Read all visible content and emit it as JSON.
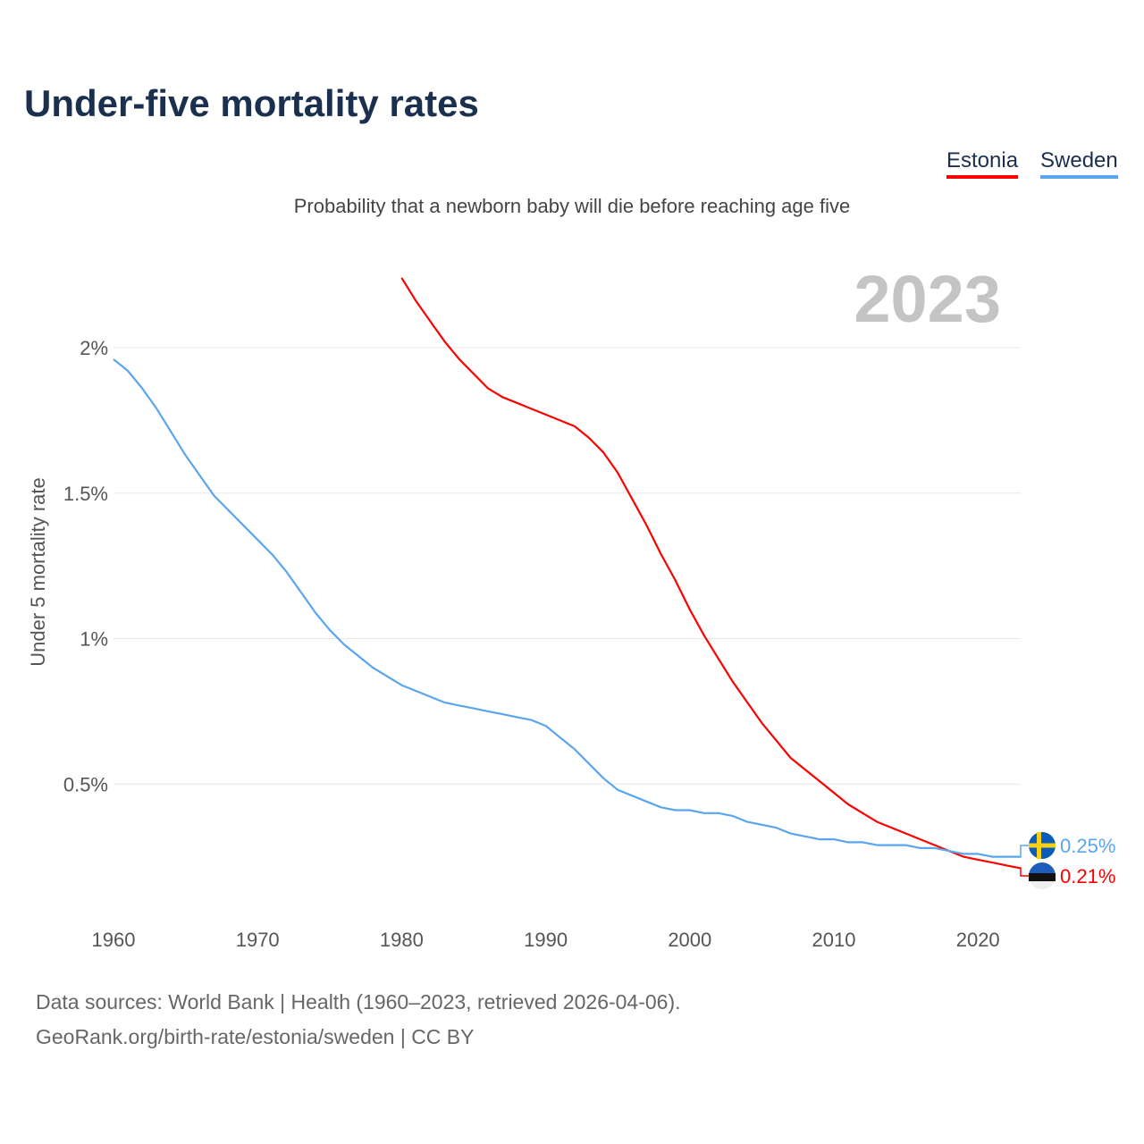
{
  "title": "Under-five mortality rates",
  "subtitle": "Probability that a newborn baby will die before reaching age five",
  "legend": [
    {
      "label": "Estonia",
      "color": "#ff0000"
    },
    {
      "label": "Sweden",
      "color": "#5aa5ef"
    }
  ],
  "year_watermark": "2023",
  "sources": [
    "Data sources: World Bank | Health (1960–2023, retrieved 2026-04-06).",
    "GeoRank.org/birth-rate/estonia/sweden | CC BY"
  ],
  "chart_data": {
    "type": "line",
    "title": "Under-five mortality rates",
    "ylabel": "Under 5 mortality rate",
    "xlabel": "",
    "xlim": [
      1960,
      2023
    ],
    "ylim": [
      0,
      2.3
    ],
    "x_ticks": [
      "1960",
      "1970",
      "1980",
      "1990",
      "2000",
      "2010",
      "2020"
    ],
    "y_ticks": [
      {
        "v": 0.5,
        "label": "0.5%"
      },
      {
        "v": 1,
        "label": "1%"
      },
      {
        "v": 1.5,
        "label": "1.5%"
      },
      {
        "v": 2,
        "label": "2%"
      }
    ],
    "grid": true,
    "legend_position": "top-right",
    "series": [
      {
        "name": "Estonia",
        "color": "#ff0000",
        "start_year": 1980,
        "end_label": "0.21%",
        "flag": "estonia",
        "values": [
          2.24,
          2.16,
          2.09,
          2.02,
          1.96,
          1.91,
          1.86,
          1.83,
          1.81,
          1.79,
          1.77,
          1.75,
          1.73,
          1.69,
          1.64,
          1.57,
          1.48,
          1.39,
          1.29,
          1.2,
          1.1,
          1.01,
          0.93,
          0.85,
          0.78,
          0.71,
          0.65,
          0.59,
          0.55,
          0.51,
          0.47,
          0.43,
          0.4,
          0.37,
          0.35,
          0.33,
          0.31,
          0.29,
          0.27,
          0.25,
          0.24,
          0.23,
          0.22,
          0.21
        ]
      },
      {
        "name": "Sweden",
        "color": "#5aa5ef",
        "start_year": 1960,
        "end_label": "0.25%",
        "flag": "sweden",
        "values": [
          1.96,
          1.92,
          1.86,
          1.79,
          1.71,
          1.63,
          1.56,
          1.49,
          1.44,
          1.39,
          1.34,
          1.29,
          1.23,
          1.16,
          1.09,
          1.03,
          0.98,
          0.94,
          0.9,
          0.87,
          0.84,
          0.82,
          0.8,
          0.78,
          0.77,
          0.76,
          0.75,
          0.74,
          0.73,
          0.72,
          0.7,
          0.66,
          0.62,
          0.57,
          0.52,
          0.48,
          0.46,
          0.44,
          0.42,
          0.41,
          0.41,
          0.4,
          0.4,
          0.39,
          0.37,
          0.36,
          0.35,
          0.33,
          0.32,
          0.31,
          0.31,
          0.3,
          0.3,
          0.29,
          0.29,
          0.29,
          0.28,
          0.28,
          0.27,
          0.26,
          0.26,
          0.25,
          0.25,
          0.25
        ]
      }
    ]
  }
}
